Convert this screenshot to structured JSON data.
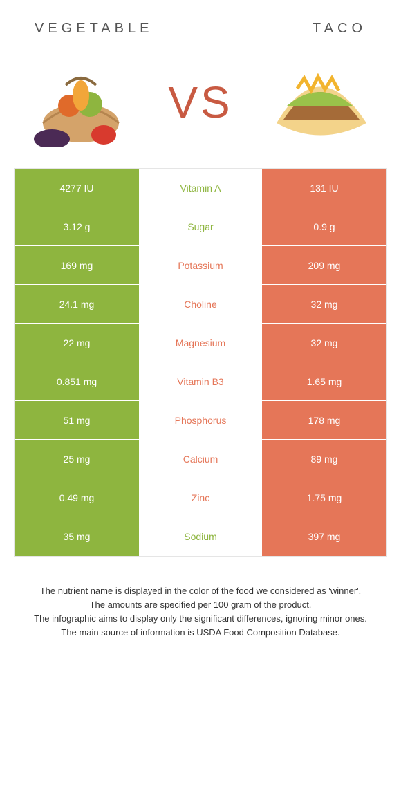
{
  "header": {
    "left_title": "Vegetable",
    "right_title": "Taco"
  },
  "vs_label": "VS",
  "colors": {
    "vegetable": "#8eb53f",
    "taco": "#e57658",
    "vs_text": "#c85a42",
    "row_border": "#ffffff"
  },
  "nutrients": [
    {
      "name": "Vitamin A",
      "left": "4277 IU",
      "right": "131 IU",
      "winner": "left"
    },
    {
      "name": "Sugar",
      "left": "3.12 g",
      "right": "0.9 g",
      "winner": "left"
    },
    {
      "name": "Potassium",
      "left": "169 mg",
      "right": "209 mg",
      "winner": "right"
    },
    {
      "name": "Choline",
      "left": "24.1 mg",
      "right": "32 mg",
      "winner": "right"
    },
    {
      "name": "Magnesium",
      "left": "22 mg",
      "right": "32 mg",
      "winner": "right"
    },
    {
      "name": "Vitamin B3",
      "left": "0.851 mg",
      "right": "1.65 mg",
      "winner": "right"
    },
    {
      "name": "Phosphorus",
      "left": "51 mg",
      "right": "178 mg",
      "winner": "right"
    },
    {
      "name": "Calcium",
      "left": "25 mg",
      "right": "89 mg",
      "winner": "right"
    },
    {
      "name": "Zinc",
      "left": "0.49 mg",
      "right": "1.75 mg",
      "winner": "right"
    },
    {
      "name": "Sodium",
      "left": "35 mg",
      "right": "397 mg",
      "winner": "left"
    }
  ],
  "footer": {
    "line1": "The nutrient name is displayed in the color of the food we considered as 'winner'.",
    "line2": "The amounts are specified per 100 gram of the product.",
    "line3": "The infographic aims to display only the significant differences, ignoring minor ones.",
    "line4": "The main source of information is USDA Food Composition Database."
  }
}
